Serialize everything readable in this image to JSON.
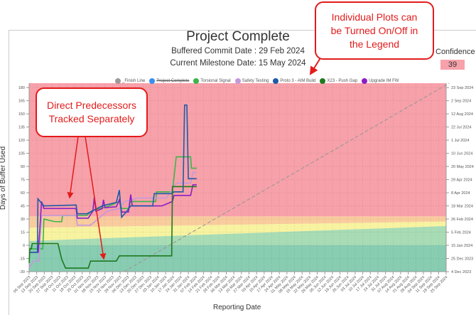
{
  "header": {
    "title": "Project Complete",
    "buffered_commit": "Buffered Commit Date : 29 Feb 2024",
    "current_milestone": "Current Milestone Date: 15 May 2024",
    "confidence_label": "Confidence",
    "confidence_value": "39"
  },
  "callouts": {
    "legend_note": [
      "Individual Plots can",
      "be Turned On/Off in",
      "the Legend"
    ],
    "predecessors_note": [
      "Direct Predecessors",
      "Tracked Separately"
    ]
  },
  "legend": [
    {
      "label": "_Finish Line",
      "color": "#a09898",
      "hidden": false
    },
    {
      "label": "Project Complete",
      "color": "#3a8ef0",
      "hidden": true
    },
    {
      "label": "Torsional Signal",
      "color": "#3cb54a",
      "hidden": false
    },
    {
      "label": "Safety Testing",
      "color": "#c39ad8",
      "hidden": false
    },
    {
      "label": "Proto 3 - AIM Build",
      "color": "#1f5aa8",
      "hidden": false
    },
    {
      "label": "X23 - Push Gap",
      "color": "#1d7a1d",
      "hidden": false
    },
    {
      "label": "Upgrade IM FW",
      "color": "#8a1fc4",
      "hidden": false
    }
  ],
  "chart_data": {
    "type": "line",
    "xlabel": "Reporting Date",
    "ylabel": "Days of Buffer Used",
    "ylim": [
      -30,
      185
    ],
    "yticks": [
      -30,
      -15,
      0,
      15,
      30,
      45,
      60,
      75,
      90,
      105,
      120,
      135,
      150,
      165,
      180
    ],
    "right_axis_labels": [
      "4 Dec 2023",
      "25 Dec 2023",
      "15 Jan 2024",
      "5 Feb 2024",
      "26 Feb 2024",
      "18 Mar 2024",
      "8 Apr 2024",
      "29 Apr 2024",
      "20 May 2024",
      "10 Jun 2024",
      "1 Jul 2024",
      "22 Jul 2024",
      "12 Aug 2024",
      "2 Sep 2024",
      "23 Sep 2024"
    ],
    "x_ticks": [
      "06 Sep 2023",
      "13 Sep 2023",
      "20 Sep 2023",
      "27 Sep 2023",
      "04 Oct 2023",
      "11 Oct 2023",
      "18 Oct 2023",
      "25 Oct 2023",
      "01 Nov 2023",
      "08 Nov 2023",
      "15 Nov 2023",
      "22 Nov 2023",
      "29 Nov 2023",
      "06 Dec 2023",
      "13 Dec 2023",
      "20 Dec 2023",
      "27 Dec 2023",
      "03 Jan 2024",
      "10 Jan 2024",
      "17 Jan 2024",
      "24 Jan 2024",
      "31 Jan 2024",
      "07 Feb 2024",
      "14 Feb 2024",
      "21 Feb 2024",
      "28 Feb 2024",
      "06 Mar 2024",
      "13 Mar 2024",
      "20 Mar 2024",
      "27 Mar 2024",
      "03 Apr 2024",
      "10 Apr 2024",
      "17 Apr 2024",
      "24 Apr 2024",
      "01 May 2024",
      "08 May 2024",
      "15 May 2024",
      "22 May 2024",
      "29 May 2024",
      "05 Jun 2024",
      "12 Jun 2024",
      "19 Jun 2024",
      "26 Jun 2024",
      "03 Jul 2024",
      "10 Jul 2024",
      "17 Jul 2024",
      "24 Jul 2024",
      "31 Jul 2024",
      "07 Aug 2024",
      "14 Aug 2024",
      "21 Aug 2024",
      "28 Aug 2024",
      "04 Sep 2024",
      "11 Sep 2024",
      "18 Sep 2024",
      "25 Sep 2024"
    ],
    "zones": [
      {
        "name": "red",
        "color": "#f7a1aa",
        "from": [
          33,
          33
        ],
        "to": [
          185,
          185
        ]
      },
      {
        "name": "orange",
        "color": "#f9cc9e",
        "from": [
          20,
          27
        ],
        "to": [
          33,
          33
        ]
      },
      {
        "name": "yellow",
        "color": "#f7f3a0",
        "from": [
          5,
          22
        ],
        "to": [
          20,
          27
        ]
      },
      {
        "name": "light-green",
        "color": "#a8dcb5",
        "from": [
          0,
          0
        ],
        "to": [
          5,
          22
        ]
      },
      {
        "name": "dark-green",
        "color": "#88ccb2",
        "from": [
          -30,
          -30
        ],
        "to": [
          0,
          0
        ]
      }
    ],
    "series": [
      {
        "name": "_Finish Line",
        "color": "#a09898",
        "dashed": true,
        "points": [
          [
            12.5,
            -30
          ],
          [
            55.4,
            185
          ]
        ]
      },
      {
        "name": "Torsional Signal",
        "color": "#3cb54a",
        "points": [
          [
            0,
            -4
          ],
          [
            1.8,
            -4
          ],
          [
            1.95,
            30
          ],
          [
            3.4,
            27
          ],
          [
            4.3,
            27
          ],
          [
            4.4,
            34
          ],
          [
            7.6,
            34
          ],
          [
            8.4,
            40
          ],
          [
            10.3,
            44
          ],
          [
            11.9,
            50
          ],
          [
            12.2,
            42
          ],
          [
            13.1,
            42
          ],
          [
            13.4,
            50
          ],
          [
            16.7,
            50
          ],
          [
            16.8,
            61
          ],
          [
            18.9,
            61
          ],
          [
            19.4,
            101
          ],
          [
            21.3,
            101
          ],
          [
            21.4,
            88
          ],
          [
            22.1,
            88
          ]
        ]
      },
      {
        "name": "Safety Testing",
        "color": "#c39ad8",
        "points": [
          [
            0,
            -26
          ],
          [
            0.6,
            -18
          ],
          [
            1.3,
            -18
          ],
          [
            1.64,
            34
          ],
          [
            6.2,
            34
          ],
          [
            6.35,
            23
          ],
          [
            8.1,
            23
          ],
          [
            10.3,
            39
          ],
          [
            11.9,
            42
          ],
          [
            12.6,
            50
          ],
          [
            14.4,
            54
          ],
          [
            18.1,
            54
          ],
          [
            19.4,
            71
          ],
          [
            21.3,
            71
          ],
          [
            21.6,
            83
          ],
          [
            22.1,
            83
          ]
        ]
      },
      {
        "name": "Upgrade IM FW",
        "color": "#8a1fc4",
        "points": [
          [
            0,
            -8
          ],
          [
            1.2,
            -8
          ],
          [
            1.64,
            50
          ],
          [
            1.95,
            42
          ],
          [
            6.2,
            42
          ],
          [
            6.35,
            31
          ],
          [
            7.8,
            31
          ],
          [
            8.4,
            39
          ],
          [
            8.6,
            55
          ],
          [
            8.8,
            39
          ],
          [
            9.65,
            42
          ],
          [
            9.8,
            52
          ],
          [
            10,
            43
          ],
          [
            11.5,
            44
          ],
          [
            11.9,
            52
          ],
          [
            12.2,
            38
          ],
          [
            13.1,
            38
          ],
          [
            13.4,
            58
          ],
          [
            13.6,
            45
          ],
          [
            17.5,
            45
          ],
          [
            18.9,
            50
          ],
          [
            19.1,
            57
          ],
          [
            21.3,
            57
          ],
          [
            21.6,
            69
          ],
          [
            22.1,
            69
          ]
        ]
      },
      {
        "name": "Proto 3 - AIM Build",
        "color": "#1f5aa8",
        "points": [
          [
            0,
            -8
          ],
          [
            1.1,
            -8
          ],
          [
            1.16,
            53
          ],
          [
            1.95,
            45
          ],
          [
            6.2,
            46
          ],
          [
            6.35,
            36
          ],
          [
            7.6,
            36
          ],
          [
            9.65,
            45
          ],
          [
            11.5,
            49
          ],
          [
            11.9,
            63
          ],
          [
            12.2,
            32
          ],
          [
            12.8,
            38
          ],
          [
            13.4,
            45
          ],
          [
            16.3,
            45
          ],
          [
            16.5,
            59
          ],
          [
            18.8,
            59
          ],
          [
            19.1,
            61
          ],
          [
            20.3,
            61
          ],
          [
            20.5,
            160
          ],
          [
            20.8,
            160
          ],
          [
            21,
            76
          ],
          [
            22.1,
            76
          ]
        ]
      },
      {
        "name": "X23 - Push Gap",
        "color": "#1d7a1d",
        "points": [
          [
            0,
            -20
          ],
          [
            0.1,
            -4
          ],
          [
            0.3,
            -4
          ],
          [
            0.4,
            2
          ],
          [
            3.8,
            2
          ],
          [
            4.3,
            -16
          ],
          [
            4.8,
            -26
          ],
          [
            7.8,
            -26
          ],
          [
            8.1,
            -18
          ],
          [
            11.5,
            -18
          ],
          [
            11.9,
            -12
          ],
          [
            18.8,
            -12
          ],
          [
            18.9,
            67
          ],
          [
            22.1,
            67
          ]
        ]
      }
    ]
  }
}
